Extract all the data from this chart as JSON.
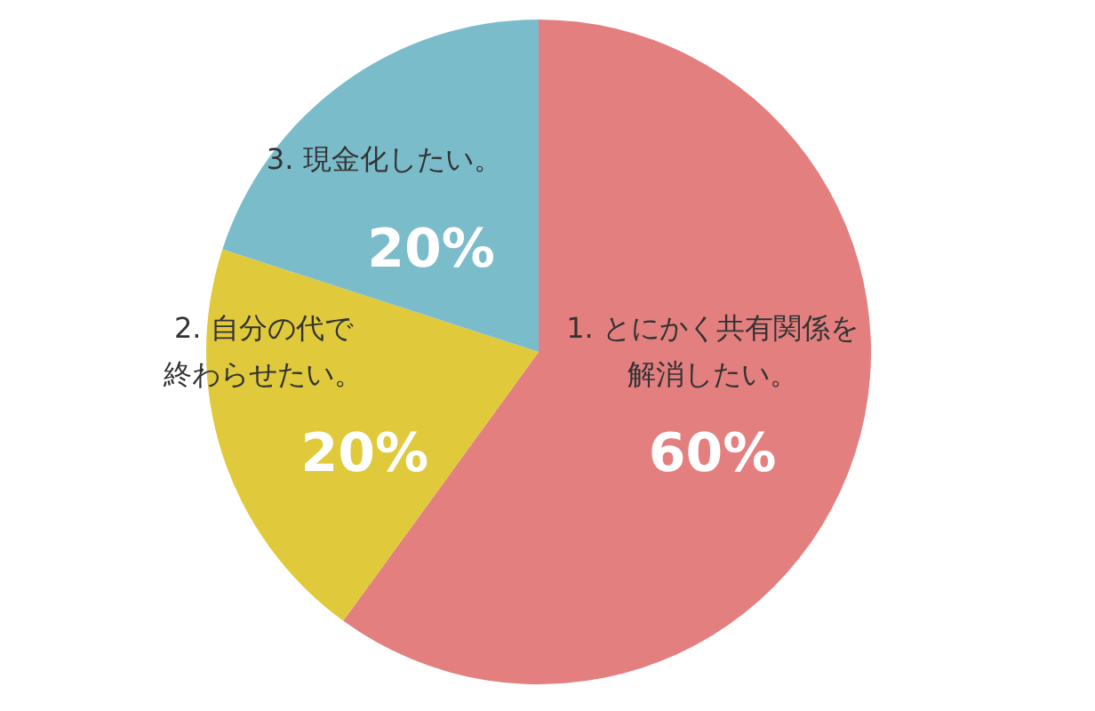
{
  "chart_data": {
    "type": "pie",
    "categories": [
      "1. とにかく共有関係を解消したい。",
      "2. 自分の代で終わらせたい。",
      "3. 現金化したい。"
    ],
    "values": [
      60,
      20,
      20
    ],
    "colors": [
      "#e47f7f",
      "#e0c93a",
      "#7bbccb"
    ],
    "value_labels": [
      "60%",
      "20%",
      "20%"
    ]
  }
}
